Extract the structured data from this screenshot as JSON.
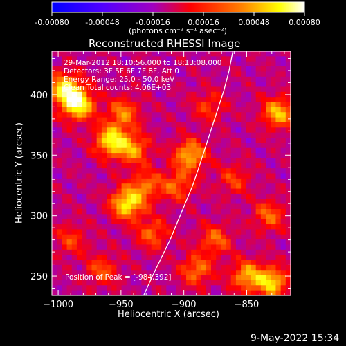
{
  "colorbar": {
    "tick_labels": [
      "-0.00080",
      "-0.00048",
      "-0.00016",
      "0.00016",
      "0.00048",
      "0.00080"
    ],
    "unit_label": "(photons cm⁻² s⁻¹ asec⁻²)"
  },
  "overlay": {
    "time_range": "29-Mar-2012 18:10:56.000 to 18:13:08.000",
    "detectors": "Detectors: 3F 5F 6F 7F 8F, Att 0",
    "energy_range": "Energy Range: 25.0 - 50.0 keV",
    "clean_counts": "Clean    Total counts: 4.06E+03",
    "peak_position": "Position of Peak = [-984,392]"
  },
  "footer": {
    "timestamp": "9-May-2022 15:34"
  },
  "chart_data": {
    "type": "heatmap",
    "title": "Reconstructed RHESSI Image",
    "xlabel": "Heliocentric X (arcsec)",
    "ylabel": "Heliocentric Y (arcsec)",
    "xlim": [
      -1005,
      -815
    ],
    "ylim": [
      234,
      436
    ],
    "x_ticks": [
      -1000,
      -950,
      -900,
      -850
    ],
    "y_ticks": [
      250,
      300,
      350,
      400
    ],
    "color_range": [
      -0.0008,
      0.0008
    ],
    "colormap": [
      "#0000ff",
      "#8000ff",
      "#ff0000",
      "#ff8000",
      "#ffff00",
      "#ffffff"
    ],
    "peak_position": [
      -984,
      392
    ],
    "grid_resolution": [
      48,
      48
    ],
    "hotspots": [
      {
        "x": -984,
        "y": 392,
        "value": 0.0008
      },
      {
        "x": -995,
        "y": 405,
        "value": 0.0007
      },
      {
        "x": -958,
        "y": 362,
        "value": 0.00072
      },
      {
        "x": -940,
        "y": 355,
        "value": 0.0005
      },
      {
        "x": -945,
        "y": 310,
        "value": 0.00075
      },
      {
        "x": -930,
        "y": 325,
        "value": 0.0004
      },
      {
        "x": -948,
        "y": 385,
        "value": 0.00045
      },
      {
        "x": -895,
        "y": 350,
        "value": 0.0006
      },
      {
        "x": -905,
        "y": 325,
        "value": 0.0004
      },
      {
        "x": -925,
        "y": 285,
        "value": 0.0004
      },
      {
        "x": -875,
        "y": 280,
        "value": 0.0004
      },
      {
        "x": -890,
        "y": 255,
        "value": 0.00045
      },
      {
        "x": -850,
        "y": 250,
        "value": 0.00055
      },
      {
        "x": -830,
        "y": 245,
        "value": 0.00065
      },
      {
        "x": -825,
        "y": 385,
        "value": 0.0006
      },
      {
        "x": -832,
        "y": 300,
        "value": 0.0004
      },
      {
        "x": -880,
        "y": 390,
        "value": 0.0003
      },
      {
        "x": -990,
        "y": 280,
        "value": 0.0003
      },
      {
        "x": -965,
        "y": 255,
        "value": 0.00035
      },
      {
        "x": -860,
        "y": 330,
        "value": 0.0003
      }
    ],
    "limb_curve": {
      "x": [
        -932,
        -925,
        -918,
        -911,
        -905,
        -899,
        -893,
        -888,
        -883,
        -878,
        -873,
        -868,
        -864,
        -861
      ],
      "y": [
        234,
        250,
        265,
        280,
        295,
        310,
        325,
        340,
        356,
        372,
        388,
        404,
        420,
        436
      ]
    }
  }
}
